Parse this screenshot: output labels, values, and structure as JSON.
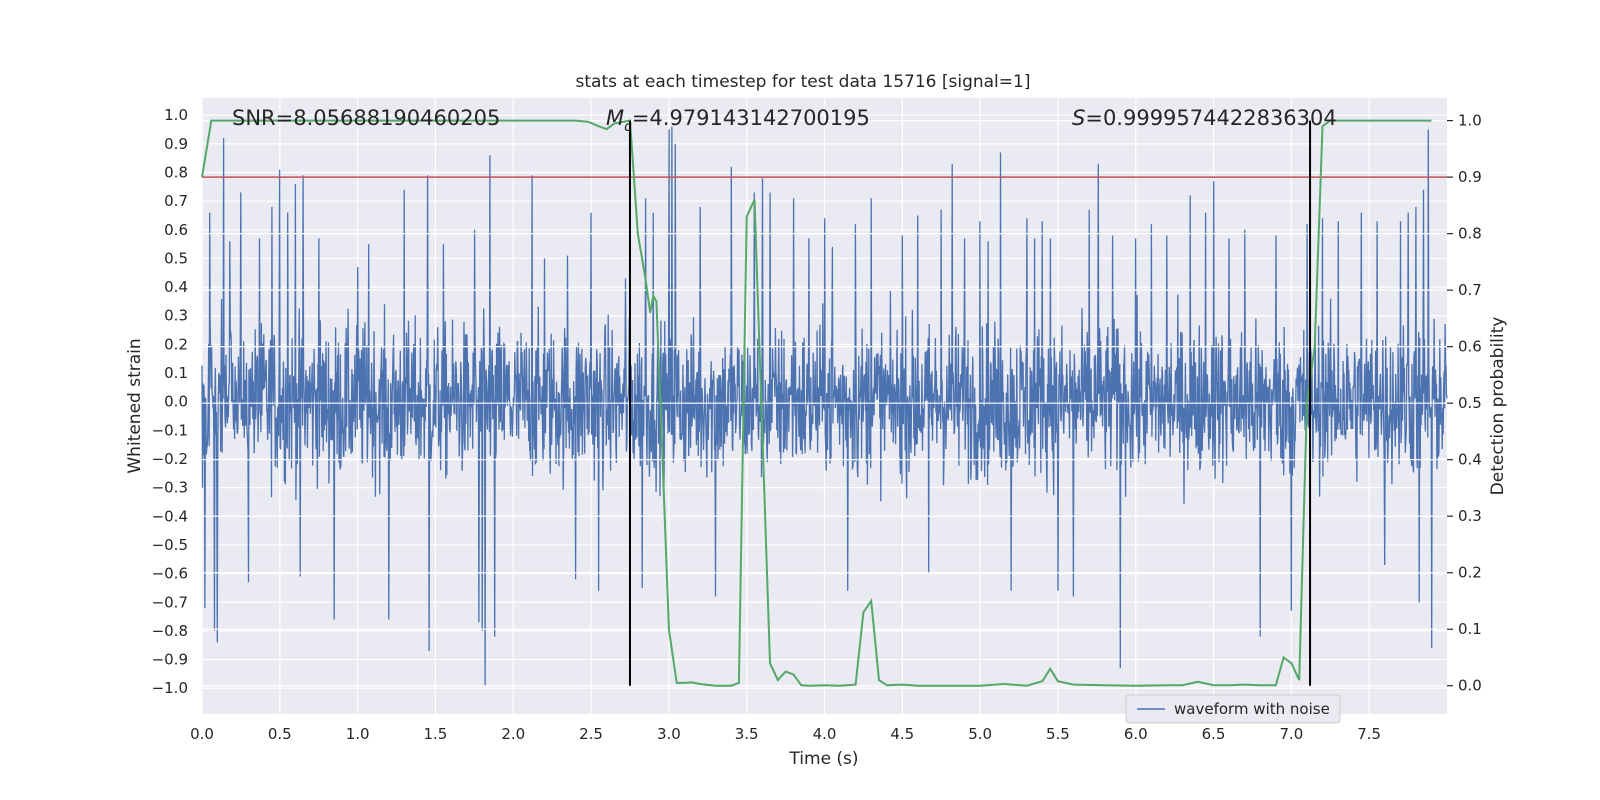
{
  "chart_data": {
    "type": "line",
    "title": "stats at each timestep for test data 15716 [signal=1]",
    "xlabel": "Time (s)",
    "ylabel_left": "Whitened strain",
    "ylabel_right": "Detection probability",
    "xlim": [
      0.0,
      8.0
    ],
    "ylim_left": [
      -1.09,
      1.06
    ],
    "ylim_right": [
      -0.05,
      1.04
    ],
    "x_ticks": [
      0.0,
      0.5,
      1.0,
      1.5,
      2.0,
      2.5,
      3.0,
      3.5,
      4.0,
      4.5,
      5.0,
      5.5,
      6.0,
      6.5,
      7.0,
      7.5
    ],
    "x_tick_labels": [
      "0.0",
      "0.5",
      "1.0",
      "1.5",
      "2.0",
      "2.5",
      "3.0",
      "3.5",
      "4.0",
      "4.5",
      "5.0",
      "5.5",
      "6.0",
      "6.5",
      "7.0",
      "7.5"
    ],
    "y_left_ticks": [
      1.0,
      0.9,
      0.8,
      0.7,
      0.6,
      0.5,
      0.4,
      0.3,
      0.2,
      0.1,
      0.0,
      -0.1,
      -0.2,
      -0.3,
      -0.4,
      -0.5,
      -0.6,
      -0.7,
      -0.8,
      -0.9,
      -1.0
    ],
    "y_left_tick_labels": [
      "1.0",
      "0.9",
      "0.8",
      "0.7",
      "0.6",
      "0.5",
      "0.4",
      "0.3",
      "0.2",
      "0.1",
      "0.0",
      "−0.1",
      "−0.2",
      "−0.3",
      "−0.4",
      "−0.5",
      "−0.6",
      "−0.7",
      "−0.8",
      "−0.9",
      "−1.0"
    ],
    "y_right_ticks": [
      1.0,
      0.9,
      0.8,
      0.7,
      0.6,
      0.5,
      0.4,
      0.3,
      0.2,
      0.1,
      0.0
    ],
    "y_right_tick_labels": [
      "1.0",
      "0.9",
      "0.8",
      "0.7",
      "0.6",
      "0.5",
      "0.4",
      "0.3",
      "0.2",
      "0.1",
      "0.0"
    ],
    "annotations": {
      "snr": "SNR=8.05688190460205",
      "mc_symbol": "M",
      "mc_subscript": "c",
      "mc_value": "=4.979143142700195",
      "s_symbol": "S",
      "s_value": "=0.9999574422836304"
    },
    "threshold": {
      "axis": "right",
      "value": 0.9,
      "color": "#c44e52"
    },
    "vertical_markers": [
      2.75,
      7.12
    ],
    "series": [
      {
        "name": "waveform with noise",
        "axis": "left",
        "color": "#4c72b0",
        "style": "dense noisy strain, envelope approx ±0.45 with spikes to ±0.97",
        "spikes": [
          [
            0.02,
            -0.72
          ],
          [
            0.05,
            0.66
          ],
          [
            0.08,
            -0.8
          ],
          [
            0.1,
            -0.84
          ],
          [
            0.14,
            0.92
          ],
          [
            0.18,
            0.56
          ],
          [
            0.25,
            0.73
          ],
          [
            0.3,
            -0.63
          ],
          [
            0.37,
            0.57
          ],
          [
            0.45,
            0.68
          ],
          [
            0.5,
            0.81
          ],
          [
            0.55,
            0.66
          ],
          [
            0.6,
            0.76
          ],
          [
            0.63,
            -0.61
          ],
          [
            0.65,
            0.79
          ],
          [
            0.75,
            0.57
          ],
          [
            0.85,
            -0.76
          ],
          [
            1.0,
            0.47
          ],
          [
            1.07,
            0.55
          ],
          [
            1.2,
            -0.76
          ],
          [
            1.3,
            0.74
          ],
          [
            1.45,
            0.79
          ],
          [
            1.46,
            -0.87
          ],
          [
            1.55,
            0.55
          ],
          [
            1.75,
            0.6
          ],
          [
            1.78,
            -0.77
          ],
          [
            1.8,
            -0.8
          ],
          [
            1.82,
            -0.99
          ],
          [
            1.85,
            0.86
          ],
          [
            1.88,
            -0.82
          ],
          [
            2.12,
            0.79
          ],
          [
            2.2,
            0.5
          ],
          [
            2.35,
            0.51
          ],
          [
            2.4,
            -0.62
          ],
          [
            2.5,
            0.66
          ],
          [
            2.55,
            -0.66
          ],
          [
            2.72,
            0.43
          ],
          [
            2.83,
            -0.65
          ],
          [
            2.85,
            0.71
          ],
          [
            2.9,
            0.66
          ],
          [
            3.0,
            0.95
          ],
          [
            3.02,
            0.96
          ],
          [
            3.04,
            0.9
          ],
          [
            3.2,
            0.68
          ],
          [
            3.3,
            -0.68
          ],
          [
            3.4,
            0.82
          ],
          [
            3.55,
            0.73
          ],
          [
            3.6,
            0.78
          ],
          [
            3.65,
            0.73
          ],
          [
            3.8,
            0.71
          ],
          [
            3.9,
            0.57
          ],
          [
            4.0,
            0.64
          ],
          [
            4.05,
            0.54
          ],
          [
            4.15,
            -0.66
          ],
          [
            4.2,
            0.62
          ],
          [
            4.3,
            0.71
          ],
          [
            4.5,
            0.58
          ],
          [
            4.6,
            0.65
          ],
          [
            4.67,
            -0.6
          ],
          [
            4.75,
            0.67
          ],
          [
            4.82,
            0.83
          ],
          [
            4.9,
            0.57
          ],
          [
            5.0,
            0.63
          ],
          [
            5.05,
            0.56
          ],
          [
            5.13,
            0.87
          ],
          [
            5.2,
            -0.66
          ],
          [
            5.3,
            0.64
          ],
          [
            5.35,
            0.57
          ],
          [
            5.4,
            0.63
          ],
          [
            5.45,
            0.57
          ],
          [
            5.5,
            -0.66
          ],
          [
            5.6,
            -0.68
          ],
          [
            5.7,
            0.67
          ],
          [
            5.76,
            0.83
          ],
          [
            5.85,
            0.58
          ],
          [
            5.9,
            -0.93
          ],
          [
            6.0,
            0.57
          ],
          [
            6.1,
            0.62
          ],
          [
            6.2,
            0.58
          ],
          [
            6.35,
            0.72
          ],
          [
            6.45,
            0.66
          ],
          [
            6.5,
            0.77
          ],
          [
            6.6,
            0.57
          ],
          [
            6.7,
            0.6
          ],
          [
            6.8,
            -0.82
          ],
          [
            6.9,
            0.58
          ],
          [
            7.0,
            -0.73
          ],
          [
            7.1,
            0.62
          ],
          [
            7.2,
            0.64
          ],
          [
            7.3,
            0.63
          ],
          [
            7.45,
            0.66
          ],
          [
            7.55,
            0.63
          ],
          [
            7.6,
            -0.57
          ],
          [
            7.7,
            0.63
          ],
          [
            7.75,
            0.66
          ],
          [
            7.8,
            0.68
          ],
          [
            7.82,
            -0.7
          ],
          [
            7.85,
            0.74
          ],
          [
            7.88,
            0.95
          ],
          [
            7.9,
            -0.86
          ]
        ]
      },
      {
        "name": "detection probability",
        "axis": "right",
        "color": "#55a868",
        "x": [
          0.0,
          0.06,
          0.3,
          0.6,
          0.9,
          1.2,
          1.5,
          1.8,
          2.1,
          2.4,
          2.48,
          2.55,
          2.6,
          2.65,
          2.75,
          2.8,
          2.85,
          2.88,
          2.9,
          2.92,
          2.95,
          3.0,
          3.05,
          3.1,
          3.15,
          3.2,
          3.3,
          3.4,
          3.45,
          3.5,
          3.55,
          3.6,
          3.65,
          3.7,
          3.75,
          3.8,
          3.85,
          3.9,
          4.0,
          4.1,
          4.2,
          4.25,
          4.3,
          4.35,
          4.4,
          4.5,
          4.6,
          4.8,
          5.0,
          5.15,
          5.3,
          5.4,
          5.45,
          5.5,
          5.6,
          5.8,
          6.0,
          6.2,
          6.3,
          6.4,
          6.5,
          6.6,
          6.7,
          6.8,
          6.9,
          6.95,
          7.0,
          7.05,
          7.1,
          7.15,
          7.2,
          7.25,
          7.3,
          7.5,
          7.7,
          7.9
        ],
        "y": [
          0.9,
          1.0,
          1.0,
          1.0,
          1.0,
          1.0,
          1.0,
          1.0,
          1.0,
          1.0,
          0.998,
          0.99,
          0.985,
          0.995,
          1.0,
          0.8,
          0.72,
          0.66,
          0.69,
          0.68,
          0.47,
          0.1,
          0.005,
          0.005,
          0.006,
          0.003,
          0.0,
          0.0,
          0.005,
          0.83,
          0.86,
          0.45,
          0.04,
          0.01,
          0.025,
          0.02,
          0.001,
          0.0,
          0.001,
          0.0,
          0.002,
          0.13,
          0.15,
          0.01,
          0.001,
          0.002,
          0.0,
          0.0,
          0.0,
          0.003,
          0.0,
          0.008,
          0.03,
          0.008,
          0.002,
          0.001,
          0.0,
          0.001,
          0.001,
          0.007,
          0.001,
          0.001,
          0.002,
          0.001,
          0.001,
          0.05,
          0.04,
          0.01,
          0.5,
          0.6,
          0.99,
          1.0,
          1.0,
          1.0,
          1.0,
          1.0
        ]
      }
    ],
    "legend": {
      "label": "waveform with noise",
      "placement": "lower-right"
    }
  }
}
